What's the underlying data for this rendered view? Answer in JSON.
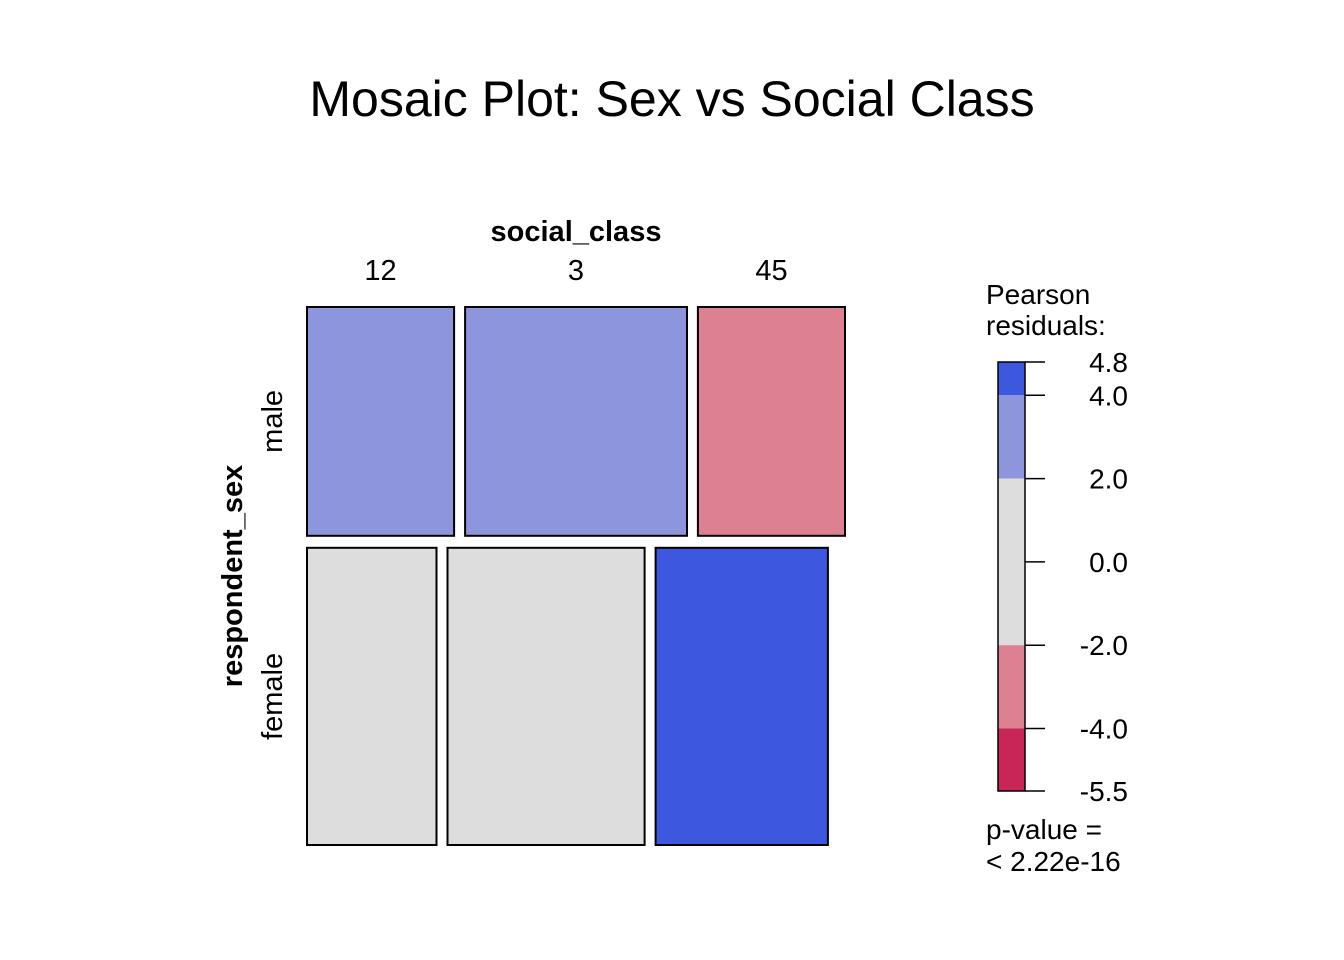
{
  "chart_data": {
    "type": "mosaic",
    "title": "Mosaic Plot: Sex vs Social Class",
    "column_variable": "social_class",
    "row_variable": "respondent_sex",
    "columns": [
      "12",
      "3",
      "45"
    ],
    "rows": [
      "male",
      "female"
    ],
    "row_proportions": [
      0.435,
      0.565
    ],
    "column_proportions_by_row": [
      [
        0.285,
        0.43,
        0.285
      ],
      [
        0.251,
        0.382,
        0.334
      ]
    ],
    "residual_bands": [
      [
        4.0,
        4.8
      ],
      [
        2.0,
        4.0
      ],
      [
        -4.0,
        -2.0
      ],
      [
        -5.5,
        -4.0
      ]
    ],
    "cell_residual_band": [
      [
        1,
        1,
        3
      ],
      [
        2,
        2,
        0
      ]
    ],
    "legend": {
      "title_line1": "Pearson",
      "title_line2": "residuals:",
      "min": -5.5,
      "max": 4.8,
      "ticks": [
        "4.8",
        "4.0",
        "2.0",
        "0.0",
        "-2.0",
        "-4.0",
        "-5.5"
      ],
      "tick_values": [
        4.8,
        4.0,
        2.0,
        0.0,
        -2.0,
        -4.0,
        -5.5
      ],
      "bands": [
        {
          "from": 4.0,
          "to": 4.8,
          "color": "#3d58de"
        },
        {
          "from": 2.0,
          "to": 4.0,
          "color": "#8d95dd"
        },
        {
          "from": -2.0,
          "to": 2.0,
          "color": "#dddddd"
        },
        {
          "from": -4.0,
          "to": -2.0,
          "color": "#dd8092"
        },
        {
          "from": -5.5,
          "to": -4.0,
          "color": "#c72657"
        }
      ],
      "pvalue_line1": "p-value =",
      "pvalue_line2": "< 2.22e-16"
    }
  }
}
